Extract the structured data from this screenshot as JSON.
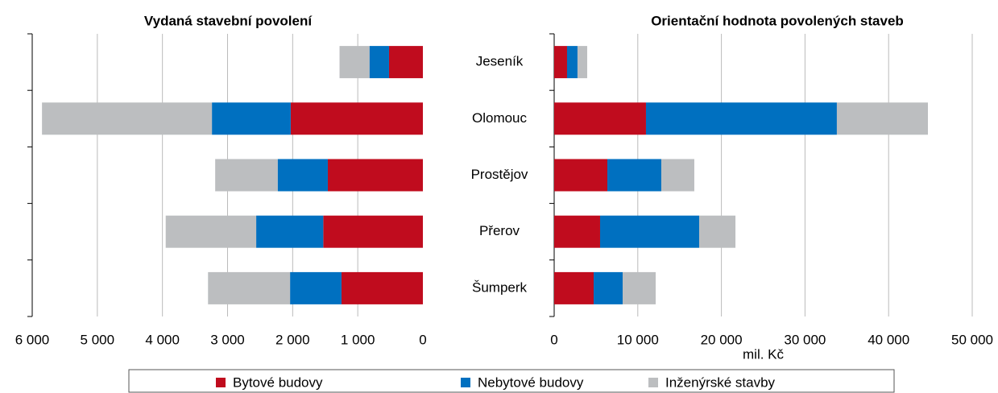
{
  "chart_data": [
    {
      "type": "barh_stacked",
      "title": "Vydaná stavební povolení",
      "x_reversed": true,
      "grid": true,
      "categories": [
        null,
        null,
        null,
        null,
        null
      ],
      "series": [
        {
          "name": "Bytové budovy",
          "color": "#c00c1e",
          "values": [
            520,
            2030,
            1460,
            1530,
            1250
          ]
        },
        {
          "name": "Nebytové budovy",
          "color": "#0070c0",
          "values": [
            300,
            1210,
            770,
            1030,
            790
          ]
        },
        {
          "name": "Inženýrské stavby",
          "color": "#bcbec0",
          "values": [
            460,
            2610,
            960,
            1390,
            1260
          ]
        }
      ],
      "xlim": [
        0,
        6000
      ],
      "xticks": [
        0,
        {
          "value": 1000,
          "label": "1 000"
        },
        {
          "value": 2000,
          "label": "2 000"
        },
        {
          "value": 3000,
          "label": "3 000"
        },
        {
          "value": 4000,
          "label": "4 000"
        },
        {
          "value": 5000,
          "label": "5 000"
        },
        {
          "value": 6000,
          "label": "6 000"
        }
      ]
    },
    {
      "type": "barh_stacked",
      "title": "Orientační hodnota povolených staveb",
      "x_reversed": false,
      "grid": true,
      "xlabel": "mil. Kč",
      "categories": [
        "Jeseník",
        "Olomouc",
        "Prostějov",
        "Přerov",
        "Šumperk"
      ],
      "series": [
        {
          "color": "#c00c1e",
          "values": [
            1540,
            10980,
            6360,
            5490,
            4720
          ]
        },
        {
          "color": "#0070c0",
          "values": [
            1250,
            22830,
            6450,
            11850,
            3470
          ]
        },
        {
          "color": "#bcbec0",
          "values": [
            1160,
            10890,
            3950,
            4340,
            3950
          ]
        }
      ],
      "xlim": [
        0,
        50000
      ],
      "xticks": [
        0,
        {
          "value": 10000,
          "label": "10 000"
        },
        {
          "value": 20000,
          "label": "20 000"
        },
        {
          "value": 30000,
          "label": "30 000"
        },
        {
          "value": 40000,
          "label": "40 000"
        },
        {
          "value": 50000,
          "label": "50 000"
        }
      ]
    }
  ]
}
